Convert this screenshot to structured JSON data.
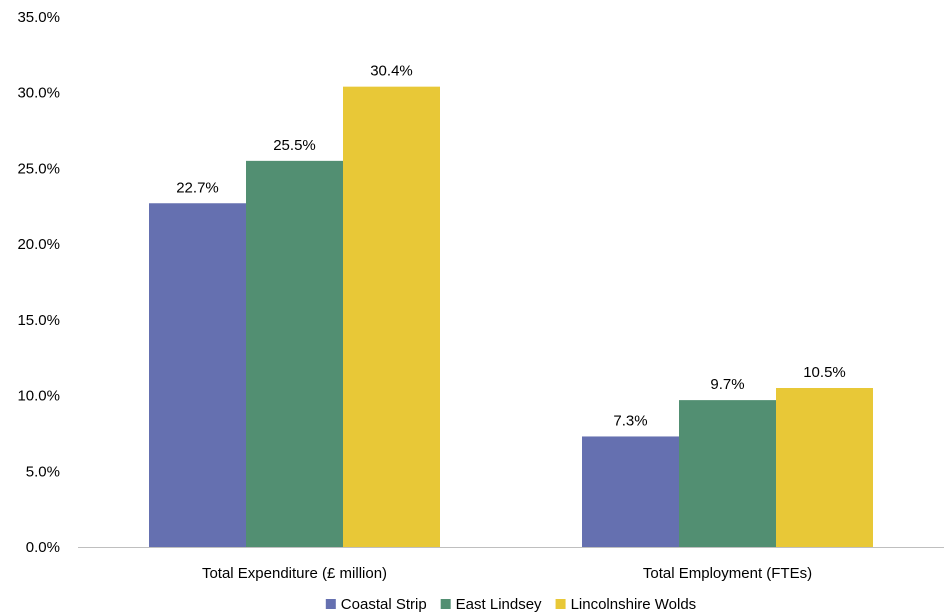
{
  "chart_data": {
    "type": "bar",
    "categories": [
      "Total Expenditure (£ million)",
      "Total Employment (FTEs)"
    ],
    "series": [
      {
        "name": "Coastal Strip",
        "values": [
          22.7,
          7.3
        ],
        "labels": [
          "22.7%",
          "7.3%"
        ],
        "color": "#6570B0"
      },
      {
        "name": "East Lindsey",
        "values": [
          25.5,
          9.7
        ],
        "labels": [
          "25.5%",
          "9.7%"
        ],
        "color": "#528F72"
      },
      {
        "name": "Lincolnshire Wolds",
        "values": [
          30.4,
          10.5
        ],
        "labels": [
          "30.4%",
          "10.5%"
        ],
        "color": "#E8C837"
      }
    ],
    "ylim": [
      0,
      35
    ],
    "yticks": [
      "0.0%",
      "5.0%",
      "10.0%",
      "15.0%",
      "20.0%",
      "25.0%",
      "30.0%",
      "35.0%"
    ],
    "grid": false,
    "legend_position": "bottom",
    "axis_color": "#BFBFBF"
  }
}
